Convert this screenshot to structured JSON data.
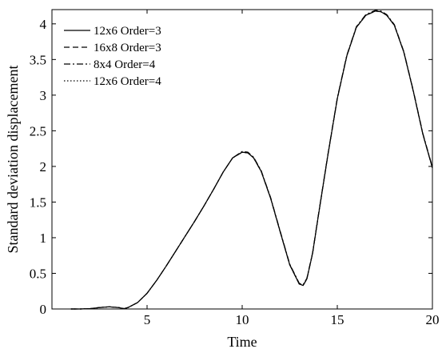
{
  "chart_data": {
    "type": "line",
    "xlabel": "Time",
    "ylabel": "Standard deviation displacement",
    "xlim": [
      0,
      20
    ],
    "ylim": [
      0,
      4.2
    ],
    "xticks": [
      5,
      10,
      15,
      20
    ],
    "yticks": [
      0,
      0.5,
      1,
      1.5,
      2,
      2.5,
      3,
      3.5,
      4
    ],
    "grid": false,
    "legend_position": "top-left",
    "series": [
      {
        "name": "12x6 Order=3",
        "style": "solid",
        "x": [
          1.0,
          1.5,
          2.0,
          2.5,
          3.0,
          3.5,
          3.8,
          4.0,
          4.5,
          5.0,
          5.5,
          6.0,
          6.5,
          7.0,
          7.5,
          8.0,
          8.5,
          9.0,
          9.5,
          10.0,
          10.3,
          10.6,
          11.0,
          11.5,
          12.0,
          12.5,
          13.0,
          13.2,
          13.4,
          13.7,
          14.0,
          14.5,
          15.0,
          15.5,
          16.0,
          16.5,
          17.0,
          17.3,
          17.6,
          18.0,
          18.5,
          19.0,
          19.5,
          20.0
        ],
        "y": [
          0.0,
          0.0,
          0.005,
          0.02,
          0.03,
          0.02,
          0.005,
          0.02,
          0.09,
          0.22,
          0.4,
          0.6,
          0.81,
          1.02,
          1.23,
          1.45,
          1.68,
          1.92,
          2.12,
          2.2,
          2.19,
          2.12,
          1.93,
          1.55,
          1.08,
          0.62,
          0.35,
          0.33,
          0.42,
          0.78,
          1.3,
          2.15,
          2.95,
          3.55,
          3.95,
          4.12,
          4.18,
          4.17,
          4.12,
          3.98,
          3.6,
          3.05,
          2.45,
          1.98
        ]
      },
      {
        "name": "16x8 Order=3",
        "style": "dashed",
        "x": [
          1.0,
          1.5,
          2.0,
          2.5,
          3.0,
          3.5,
          3.8,
          4.0,
          4.5,
          5.0,
          5.5,
          6.0,
          6.5,
          7.0,
          7.5,
          8.0,
          8.5,
          9.0,
          9.5,
          10.0,
          10.3,
          10.6,
          11.0,
          11.5,
          12.0,
          12.5,
          13.0,
          13.2,
          13.4,
          13.7,
          14.0,
          14.5,
          15.0,
          15.5,
          16.0,
          16.5,
          17.0,
          17.3,
          17.6,
          18.0,
          18.5,
          19.0,
          19.5,
          20.0
        ],
        "y": [
          0.0,
          0.0,
          0.005,
          0.02,
          0.03,
          0.02,
          0.005,
          0.02,
          0.09,
          0.22,
          0.4,
          0.6,
          0.81,
          1.02,
          1.23,
          1.45,
          1.68,
          1.92,
          2.12,
          2.2,
          2.19,
          2.12,
          1.93,
          1.55,
          1.08,
          0.62,
          0.35,
          0.33,
          0.42,
          0.78,
          1.3,
          2.15,
          2.95,
          3.55,
          3.95,
          4.12,
          4.18,
          4.17,
          4.12,
          3.98,
          3.6,
          3.05,
          2.45,
          1.98
        ]
      },
      {
        "name": "8x4 Order=4",
        "style": "dashdot",
        "x": [
          1.0,
          1.5,
          2.0,
          2.5,
          3.0,
          3.5,
          3.8,
          4.0,
          4.5,
          5.0,
          5.5,
          6.0,
          6.5,
          7.0,
          7.5,
          8.0,
          8.5,
          9.0,
          9.5,
          10.0,
          10.3,
          10.6,
          11.0,
          11.5,
          12.0,
          12.5,
          13.0,
          13.2,
          13.4,
          13.7,
          14.0,
          14.5,
          15.0,
          15.5,
          16.0,
          16.5,
          17.0,
          17.3,
          17.6,
          18.0,
          18.5,
          19.0,
          19.5,
          20.0
        ],
        "y": [
          0.0,
          0.0,
          0.005,
          0.02,
          0.03,
          0.02,
          0.005,
          0.02,
          0.09,
          0.22,
          0.4,
          0.6,
          0.81,
          1.02,
          1.23,
          1.45,
          1.68,
          1.92,
          2.12,
          2.21,
          2.2,
          2.13,
          1.94,
          1.56,
          1.09,
          0.63,
          0.36,
          0.34,
          0.43,
          0.79,
          1.31,
          2.16,
          2.96,
          3.56,
          3.96,
          4.13,
          4.19,
          4.18,
          4.13,
          3.99,
          3.61,
          3.06,
          2.46,
          1.99
        ]
      },
      {
        "name": "12x6 Order=4",
        "style": "dotted",
        "x": [
          1.0,
          1.5,
          2.0,
          2.5,
          3.0,
          3.5,
          3.8,
          4.0,
          4.5,
          5.0,
          5.5,
          6.0,
          6.5,
          7.0,
          7.5,
          8.0,
          8.5,
          9.0,
          9.5,
          10.0,
          10.3,
          10.6,
          11.0,
          11.5,
          12.0,
          12.5,
          13.0,
          13.2,
          13.4,
          13.7,
          14.0,
          14.5,
          15.0,
          15.5,
          16.0,
          16.5,
          17.0,
          17.3,
          17.6,
          18.0,
          18.5,
          19.0,
          19.5,
          20.0
        ],
        "y": [
          0.0,
          0.0,
          0.005,
          0.02,
          0.03,
          0.02,
          0.005,
          0.02,
          0.09,
          0.22,
          0.4,
          0.6,
          0.81,
          1.02,
          1.23,
          1.45,
          1.68,
          1.92,
          2.12,
          2.2,
          2.19,
          2.12,
          1.93,
          1.55,
          1.08,
          0.62,
          0.35,
          0.33,
          0.42,
          0.78,
          1.3,
          2.15,
          2.95,
          3.55,
          3.95,
          4.12,
          4.18,
          4.17,
          4.12,
          3.98,
          3.6,
          3.05,
          2.45,
          1.98
        ]
      }
    ]
  }
}
